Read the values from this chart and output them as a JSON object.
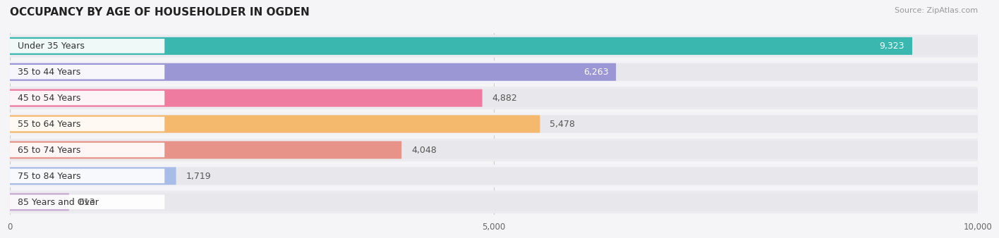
{
  "title": "OCCUPANCY BY AGE OF HOUSEHOLDER IN OGDEN",
  "source": "Source: ZipAtlas.com",
  "categories": [
    "Under 35 Years",
    "35 to 44 Years",
    "45 to 54 Years",
    "55 to 64 Years",
    "65 to 74 Years",
    "75 to 84 Years",
    "85 Years and Over"
  ],
  "values": [
    9323,
    6263,
    4882,
    5478,
    4048,
    1719,
    613
  ],
  "bar_colors": [
    "#3ab8b0",
    "#9b96d4",
    "#f07ba0",
    "#f5b96e",
    "#e8938a",
    "#a8bce8",
    "#c9a8d4"
  ],
  "bar_bg_color": "#e8e8ec",
  "xlim": [
    0,
    10000
  ],
  "xticks": [
    0,
    5000,
    10000
  ],
  "xtick_labels": [
    "0",
    "5,000",
    "10,000"
  ],
  "title_fontsize": 11,
  "source_fontsize": 8,
  "label_fontsize": 9,
  "value_fontsize": 9,
  "background_color": "#f5f5f7",
  "bar_height": 0.68,
  "row_bg_color_even": "#ebebf0",
  "row_bg_color_odd": "#f2f2f7",
  "label_bg_color": "#ffffff"
}
